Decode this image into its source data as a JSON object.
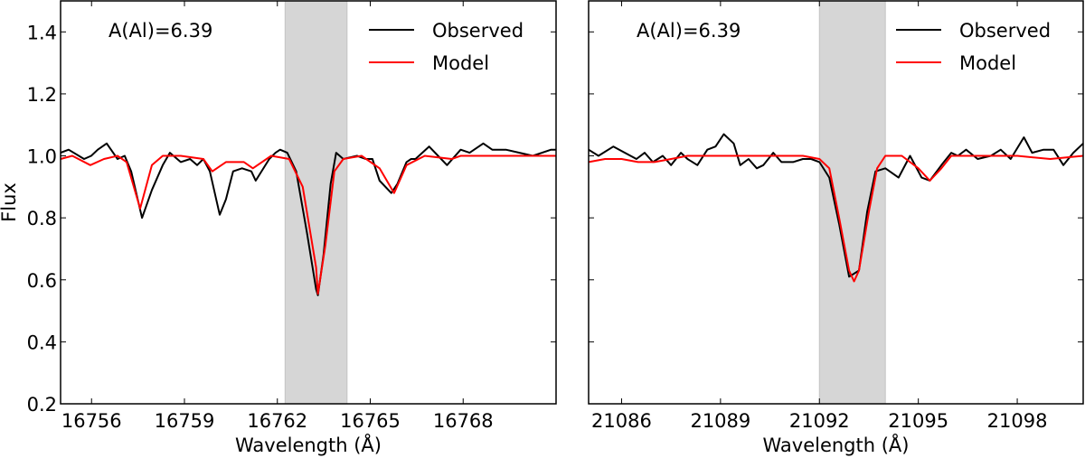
{
  "figure": {
    "ylabel": "Flux"
  },
  "colors": {
    "observed": "#000000",
    "model": "#ff0000",
    "shade": "#d6d6d6"
  },
  "chart_data": [
    {
      "type": "line",
      "title": "",
      "annotation": "A(Al)=6.39",
      "xlabel": "Wavelength (Å)",
      "ylabel": "Flux",
      "xlim": [
        16755,
        16771
      ],
      "ylim": [
        0.2,
        1.5
      ],
      "xticks": [
        16756,
        16759,
        16762,
        16765,
        16768
      ],
      "yticks": [
        0.2,
        0.4,
        0.6,
        0.8,
        1.0,
        1.2,
        1.4
      ],
      "grid": false,
      "legend": {
        "position": "upper right",
        "entries": [
          "Observed",
          "Model"
        ]
      },
      "shaded_region": [
        16762.25,
        16764.25
      ],
      "series": [
        {
          "name": "Observed",
          "x": [
            16755.0,
            16755.26,
            16755.76,
            16755.99,
            16756.2,
            16756.49,
            16756.84,
            16757.07,
            16757.28,
            16757.63,
            16757.95,
            16758.3,
            16758.53,
            16758.88,
            16759.18,
            16759.41,
            16759.61,
            16759.82,
            16760.14,
            16760.34,
            16760.57,
            16760.86,
            16761.16,
            16761.3,
            16761.74,
            16761.94,
            16762.09,
            16762.32,
            16762.61,
            16762.96,
            16763.25,
            16763.31,
            16763.49,
            16763.72,
            16763.9,
            16764.13,
            16764.57,
            16764.86,
            16765.07,
            16765.3,
            16765.68,
            16765.88,
            16766.17,
            16766.32,
            16766.46,
            16766.9,
            16767.19,
            16767.48,
            16767.92,
            16768.21,
            16768.65,
            16768.94,
            16769.38,
            16769.82,
            16770.25,
            16770.84,
            16771.0
          ],
          "y": [
            1.01,
            1.02,
            0.99,
            1.0,
            1.02,
            1.04,
            0.99,
            1.0,
            0.95,
            0.8,
            0.89,
            0.97,
            1.01,
            0.98,
            0.99,
            0.97,
            0.99,
            0.95,
            0.81,
            0.86,
            0.95,
            0.96,
            0.95,
            0.92,
            0.99,
            1.01,
            1.02,
            1.01,
            0.95,
            0.75,
            0.57,
            0.55,
            0.68,
            0.91,
            1.01,
            0.99,
            1.0,
            0.99,
            0.99,
            0.92,
            0.88,
            0.91,
            0.98,
            0.99,
            0.99,
            1.03,
            1.0,
            0.97,
            1.02,
            1.01,
            1.04,
            1.02,
            1.02,
            1.01,
            1.0,
            1.02,
            1.02
          ]
        },
        {
          "name": "Model",
          "x": [
            16755.0,
            16755.38,
            16755.96,
            16756.4,
            16756.84,
            16757.13,
            16757.57,
            16757.95,
            16758.3,
            16758.88,
            16759.61,
            16759.9,
            16760.34,
            16760.92,
            16761.21,
            16761.8,
            16762.38,
            16762.82,
            16763.25,
            16763.31,
            16763.55,
            16763.84,
            16764.13,
            16764.72,
            16765.3,
            16765.77,
            16766.17,
            16766.76,
            16767.63,
            16767.92,
            16771.0
          ],
          "y": [
            0.99,
            1.0,
            0.97,
            0.99,
            1.0,
            0.98,
            0.83,
            0.97,
            1.0,
            1.0,
            0.99,
            0.95,
            0.98,
            0.98,
            0.96,
            1.0,
            0.99,
            0.9,
            0.64,
            0.555,
            0.71,
            0.95,
            0.99,
            1.0,
            0.96,
            0.88,
            0.97,
            1.0,
            0.99,
            1.0,
            1.0
          ]
        }
      ]
    },
    {
      "type": "line",
      "title": "",
      "annotation": "A(Al)=6.39",
      "xlabel": "Wavelength (Å)",
      "ylabel": "",
      "xlim": [
        21085,
        21100
      ],
      "ylim": [
        0.2,
        1.5
      ],
      "xticks": [
        21086,
        21089,
        21092,
        21095,
        21098
      ],
      "yticks": [
        0.2,
        0.4,
        0.6,
        0.8,
        1.0,
        1.2,
        1.4
      ],
      "grid": false,
      "legend": {
        "position": "upper right",
        "entries": [
          "Observed",
          "Model"
        ]
      },
      "shaded_region": [
        21092.0,
        21094.0
      ],
      "series": [
        {
          "name": "Observed",
          "x": [
            21085.0,
            21085.3,
            21085.75,
            21086.1,
            21086.45,
            21086.7,
            21086.95,
            21087.25,
            21087.5,
            21087.8,
            21088.0,
            21088.3,
            21088.6,
            21088.85,
            21089.1,
            21089.4,
            21089.6,
            21089.85,
            21090.1,
            21090.3,
            21090.6,
            21090.85,
            21091.2,
            21091.5,
            21091.75,
            21092.0,
            21092.3,
            21092.6,
            21092.9,
            21093.2,
            21093.45,
            21093.7,
            21094.0,
            21094.4,
            21094.75,
            21095.1,
            21095.35,
            21095.7,
            21096.0,
            21096.2,
            21096.45,
            21096.8,
            21097.2,
            21097.5,
            21097.8,
            21098.2,
            21098.45,
            21098.8,
            21099.1,
            21099.4,
            21099.7,
            21100.0
          ],
          "y": [
            1.02,
            1.0,
            1.03,
            1.01,
            0.99,
            1.01,
            0.98,
            1.0,
            0.97,
            1.01,
            0.99,
            0.97,
            1.02,
            1.03,
            1.07,
            1.04,
            0.97,
            0.99,
            0.96,
            0.97,
            1.01,
            0.98,
            0.98,
            0.99,
            0.99,
            0.98,
            0.93,
            0.78,
            0.61,
            0.63,
            0.82,
            0.95,
            0.96,
            0.93,
            1.0,
            0.93,
            0.92,
            0.97,
            1.01,
            1.0,
            1.02,
            0.99,
            1.0,
            1.02,
            0.99,
            1.06,
            1.01,
            1.02,
            1.02,
            0.97,
            1.01,
            1.04
          ]
        },
        {
          "name": "Model",
          "x": [
            21085.0,
            21085.5,
            21086.0,
            21086.5,
            21087.0,
            21087.5,
            21088.0,
            21089.0,
            21090.0,
            21091.0,
            21091.5,
            21092.0,
            21092.3,
            21092.6,
            21092.9,
            21093.05,
            21093.2,
            21093.5,
            21093.75,
            21094.0,
            21094.5,
            21095.0,
            21095.35,
            21095.7,
            21096.0,
            21097.0,
            21098.0,
            21099.0,
            21100.0
          ],
          "y": [
            0.98,
            0.99,
            0.99,
            0.98,
            0.98,
            0.99,
            1.0,
            1.0,
            1.0,
            1.0,
            1.0,
            0.99,
            0.96,
            0.8,
            0.63,
            0.595,
            0.63,
            0.82,
            0.96,
            1.0,
            1.0,
            0.96,
            0.92,
            0.96,
            1.0,
            1.0,
            1.0,
            0.99,
            1.0
          ]
        }
      ]
    }
  ]
}
